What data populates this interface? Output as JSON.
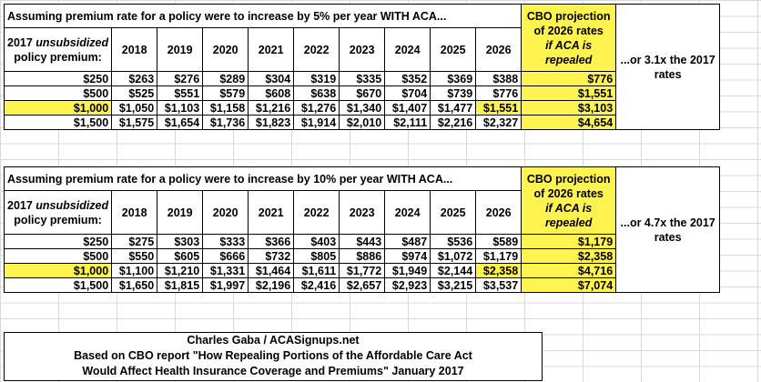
{
  "years": [
    "2018",
    "2019",
    "2020",
    "2021",
    "2022",
    "2023",
    "2024",
    "2025",
    "2026"
  ],
  "left_header": [
    "2017 ",
    "unsubsidized",
    "policy premium:"
  ],
  "cbo_header": [
    "CBO projection",
    "of 2026 rates",
    "if ACA is",
    "repealed"
  ],
  "table1": {
    "title": "Assuming premium rate for a policy were to increase by 5% per year WITH ACA...",
    "side_note": "...or 3.1x the 2017 rates",
    "rows": [
      {
        "base": "$250",
        "vals": [
          "$263",
          "$276",
          "$289",
          "$304",
          "$319",
          "$335",
          "$352",
          "$369",
          "$388"
        ],
        "cbo": "$776",
        "highlight": false
      },
      {
        "base": "$500",
        "vals": [
          "$525",
          "$551",
          "$579",
          "$608",
          "$638",
          "$670",
          "$704",
          "$739",
          "$776"
        ],
        "cbo": "$1,551",
        "highlight": false
      },
      {
        "base": "$1,000",
        "vals": [
          "$1,050",
          "$1,103",
          "$1,158",
          "$1,216",
          "$1,276",
          "$1,340",
          "$1,407",
          "$1,477",
          "$1,551"
        ],
        "cbo": "$3,103",
        "highlight": true
      },
      {
        "base": "$1,500",
        "vals": [
          "$1,575",
          "$1,654",
          "$1,736",
          "$1,823",
          "$1,914",
          "$2,010",
          "$2,111",
          "$2,216",
          "$2,327"
        ],
        "cbo": "$4,654",
        "highlight": false
      }
    ]
  },
  "table2": {
    "title": "Assuming premium rate for a policy were to increase by 10% per year WITH ACA...",
    "side_note": "...or 4.7x the 2017 rates",
    "rows": [
      {
        "base": "$250",
        "vals": [
          "$275",
          "$303",
          "$333",
          "$366",
          "$403",
          "$443",
          "$487",
          "$536",
          "$589"
        ],
        "cbo": "$1,179",
        "highlight": false
      },
      {
        "base": "$500",
        "vals": [
          "$550",
          "$605",
          "$666",
          "$732",
          "$805",
          "$886",
          "$974",
          "$1,072",
          "$1,179"
        ],
        "cbo": "$2,358",
        "highlight": false
      },
      {
        "base": "$1,000",
        "vals": [
          "$1,100",
          "$1,210",
          "$1,331",
          "$1,464",
          "$1,611",
          "$1,772",
          "$1,949",
          "$2,144",
          "$2,358"
        ],
        "cbo": "$4,716",
        "highlight": true
      },
      {
        "base": "$1,500",
        "vals": [
          "$1,650",
          "$1,815",
          "$1,997",
          "$2,196",
          "$2,416",
          "$2,657",
          "$2,923",
          "$3,215",
          "$3,537"
        ],
        "cbo": "$7,074",
        "highlight": false
      }
    ]
  },
  "footer": {
    "line1": "Charles Gaba / ACASignups.net",
    "line2": "Based on CBO report \"How Repealing Portions of the Affordable Care Act",
    "line3": "Would Affect Health Insurance Coverage and Premiums\" January 2017"
  }
}
